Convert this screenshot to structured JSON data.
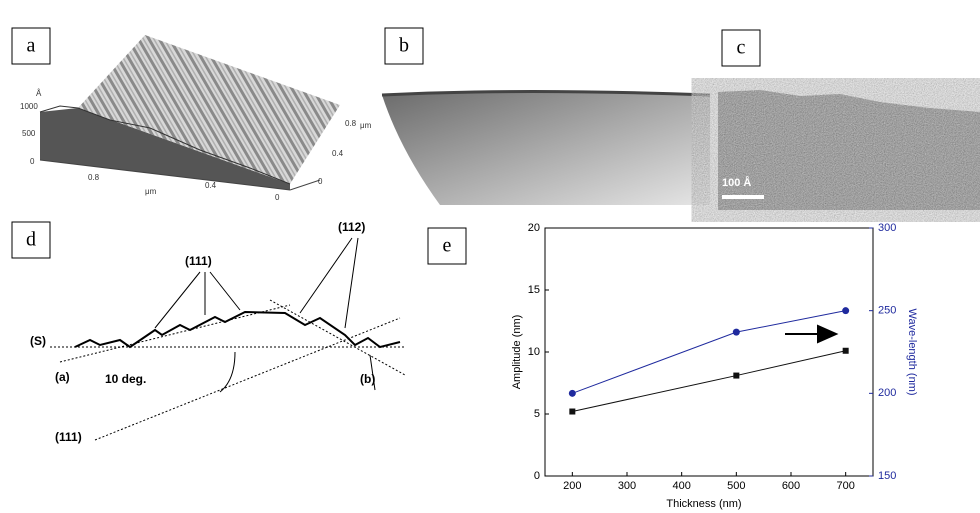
{
  "panels": {
    "a": {
      "label": "a",
      "z_unit": "Å",
      "z_ticks": [
        "1000",
        "500",
        "0"
      ],
      "y_ticks": [
        "0.8",
        "0.4",
        "0"
      ],
      "y_unit": "μm",
      "x_ticks": [
        "0.8",
        "0.4",
        "0"
      ],
      "x_unit": "μm"
    },
    "b": {
      "label": "b"
    },
    "c": {
      "label": "c",
      "scale_bar": "100 Å"
    },
    "d": {
      "label": "d",
      "annotations": [
        "(111)",
        "(112)",
        "(S)",
        "(a)",
        "10 deg.",
        "(b)",
        "(111)"
      ]
    },
    "e": {
      "label": "e"
    }
  },
  "chart_data": {
    "type": "line",
    "x_label": "Thickness (nm)",
    "y_label": "Amplitude (nm)",
    "y2_label": "Wave-length (nm)",
    "x": [
      200,
      500,
      700
    ],
    "xlim": [
      150,
      750
    ],
    "xticks": [
      200,
      300,
      400,
      500,
      600,
      700
    ],
    "ylim": [
      0,
      20
    ],
    "yticks": [
      0,
      5,
      10,
      15,
      20
    ],
    "y2lim": [
      150,
      300
    ],
    "y2ticks": [
      150,
      200,
      250,
      300
    ],
    "series": [
      {
        "color": "#111111",
        "marker": "square",
        "values": [
          5.2,
          8.1,
          10.1
        ]
      },
      {
        "color": "#1f2a9e",
        "marker": "circle",
        "axis": "y2",
        "values": [
          200,
          237,
          250
        ]
      }
    ]
  }
}
